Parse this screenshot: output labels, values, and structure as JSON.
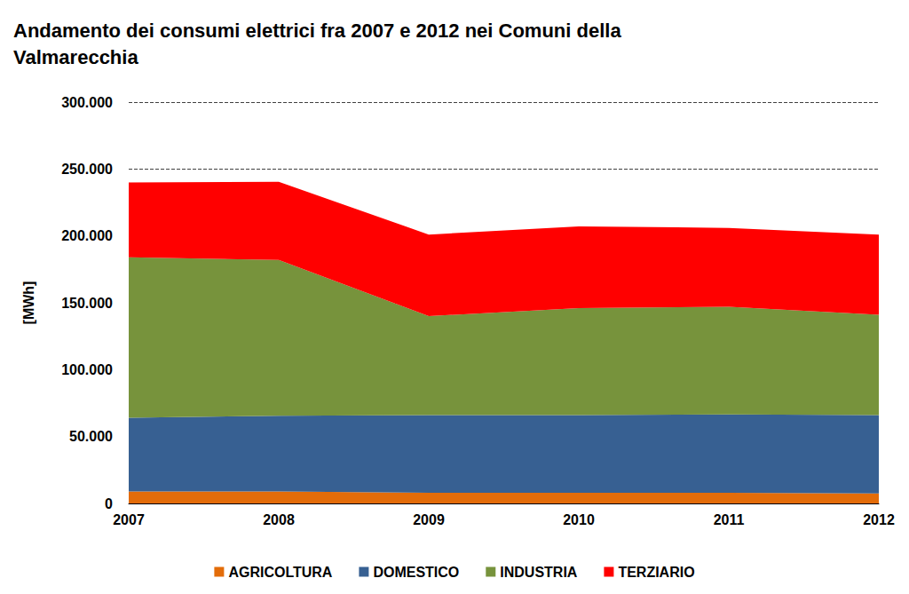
{
  "chart_data": {
    "type": "area",
    "title": "Andamento dei consumi elettrici fra 2007 e 2012 nei Comuni della Valmarecchia",
    "y_label": "[MWh]",
    "categories": [
      "2007",
      "2008",
      "2009",
      "2010",
      "2011",
      "2012"
    ],
    "stacked": true,
    "grid": true,
    "legend": "bottom",
    "data_labels": false,
    "ylim": [
      0,
      300000
    ],
    "yticks": [
      0,
      {
        "value": 50000,
        "label": "50.000"
      },
      {
        "value": 100000,
        "label": "100.000"
      },
      {
        "value": 150000,
        "label": "150.000"
      },
      {
        "value": 200000,
        "label": "200.000"
      },
      {
        "value": 250000,
        "label": "250.000"
      },
      {
        "value": 300000,
        "label": "300.000"
      }
    ],
    "series": [
      {
        "name": "AGRICOLTURA",
        "color": "#e36c09",
        "values": [
          9000,
          9000,
          8000,
          8000,
          8000,
          7500
        ]
      },
      {
        "name": "DOMESTICO",
        "color": "#376092",
        "values": [
          55000,
          56500,
          58000,
          58000,
          58500,
          58500
        ]
      },
      {
        "name": "INDUSTRIA",
        "color": "#77933c",
        "values": [
          120000,
          116500,
          74000,
          80000,
          80500,
          75000
        ]
      },
      {
        "name": "TERZIARIO",
        "color": "#ff0000",
        "values": [
          56000,
          58500,
          61000,
          61000,
          59000,
          60000
        ]
      }
    ]
  }
}
